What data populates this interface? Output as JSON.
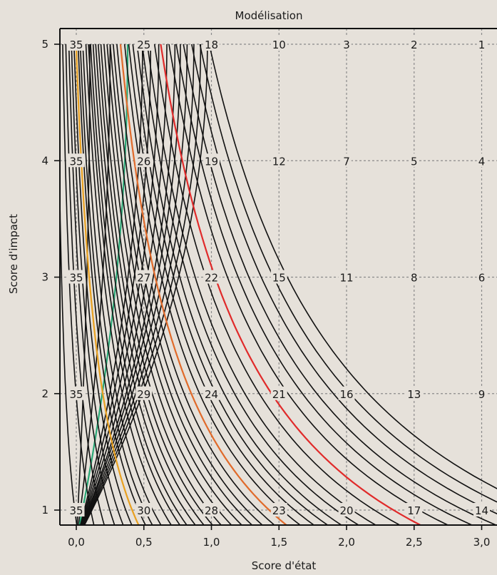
{
  "chart_data": {
    "type": "line",
    "title": "Modélisation",
    "xlabel": "Score d'état",
    "ylabel": "Score d'impact",
    "xlim": [
      -0.1,
      3.05
    ],
    "ylim": [
      0.86,
      5.15
    ],
    "x_ticks": [
      "0,0",
      "0,5",
      "1,0",
      "1,5",
      "2,0",
      "2,5",
      "3,0"
    ],
    "y_ticks": [
      "1",
      "2",
      "3",
      "4",
      "5"
    ],
    "grid": true,
    "grid_x": [
      0,
      0.5,
      1,
      1.5,
      2,
      2.5,
      3
    ],
    "grid_y": [
      1,
      2,
      3,
      4,
      5
    ],
    "grid_labels": [
      {
        "row": 5,
        "values": [
          "35",
          "25",
          "18",
          "10",
          "3",
          "2",
          "1"
        ]
      },
      {
        "row": 4,
        "values": [
          "35",
          "26",
          "19",
          "12",
          "7",
          "5",
          "4"
        ]
      },
      {
        "row": 3,
        "values": [
          "35",
          "27",
          "22",
          "15",
          "11",
          "8",
          "6"
        ]
      },
      {
        "row": 2,
        "values": [
          "35",
          "29",
          "24",
          "21",
          "16",
          "13",
          "9"
        ]
      },
      {
        "row": 1,
        "values": [
          "35",
          "30",
          "28",
          "23",
          "20",
          "17",
          "14"
        ]
      }
    ],
    "colors": {
      "background": "#e6e1da",
      "contour": "#111111",
      "green": "#2aa876",
      "orange": "#e8a020",
      "red_orange": "#e06a2a",
      "red": "#e02a2a"
    },
    "contours_type_a": {
      "k_top": [
        0.1,
        0.25,
        0.38,
        0.49,
        0.55,
        0.61,
        0.67,
        0.73,
        0.77,
        0.82,
        0.87,
        0.92,
        0.97
      ],
      "green_k": 0.38
    },
    "contours_type_b": {
      "c_values": [
        0.8,
        1.3,
        1.6,
        1.9,
        2.15,
        2.4,
        2.6,
        2.8,
        3.0,
        3.25,
        3.55,
        3.8,
        4.0,
        4.25,
        4.5,
        4.75,
        5.0,
        5.3,
        5.6,
        5.9,
        6.2,
        6.55,
        6.9,
        7.3,
        7.7,
        8.1,
        8.5,
        9.0,
        9.5,
        10.2,
        10.8,
        11.6,
        12.3,
        13.0,
        13.8,
        14.6,
        15.5
      ],
      "orange_c": 2.6,
      "red_orange_c": 6.9,
      "red_c": 10.8
    }
  }
}
